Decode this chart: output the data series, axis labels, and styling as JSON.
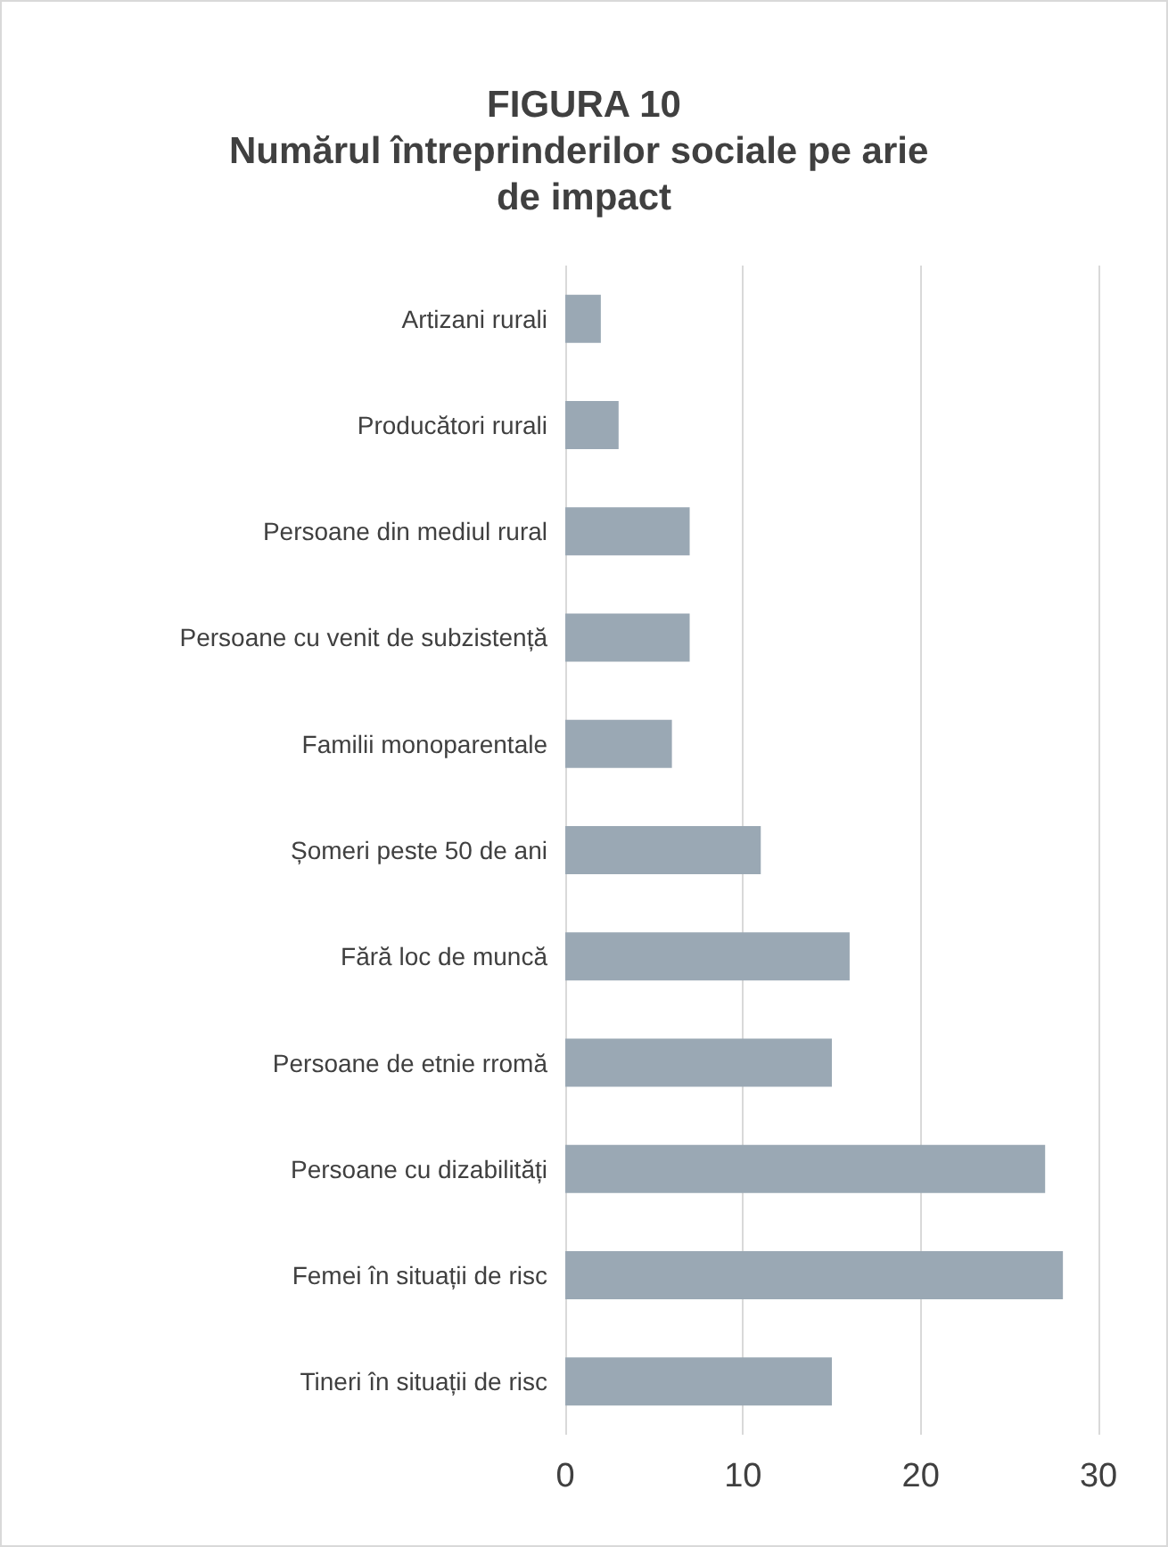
{
  "chart_data": {
    "type": "bar",
    "orientation": "horizontal",
    "title": "FIGURA 10\nNumărul întreprinderilor sociale pe arie de impact",
    "categories": [
      "Artizani rurali",
      "Producători rurali",
      "Persoane din mediul rural",
      "Persoane cu venit de subzistență",
      "Familii monoparentale",
      "Șomeri peste 50 de ani",
      "Fără loc de muncă",
      "Persoane de etnie rromă",
      "Persoane cu dizabilități",
      "Femei în situații de risc",
      "Tineri în situații de risc"
    ],
    "values": [
      2,
      3,
      7,
      7,
      6,
      11,
      16,
      15,
      27,
      28,
      15
    ],
    "color": "#9aa8b4",
    "xlim": [
      0,
      30
    ],
    "xticks": [
      0,
      10,
      20,
      30
    ],
    "grid": "x"
  }
}
